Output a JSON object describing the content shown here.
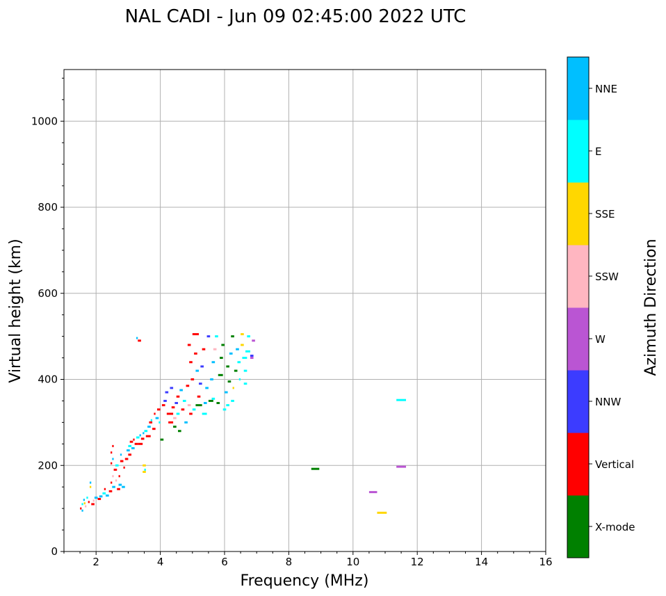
{
  "chart_data": {
    "type": "scatter",
    "title": "NAL CADI - Jun 09 02:45:00 2022 UTC",
    "xlabel": "Frequency (MHz)",
    "ylabel": "Virtual height (km)",
    "xlim": [
      1,
      16
    ],
    "ylim": [
      0,
      1120
    ],
    "xticks": [
      2,
      4,
      6,
      8,
      10,
      12,
      14,
      16
    ],
    "yticks": [
      0,
      200,
      400,
      600,
      800,
      1000
    ],
    "grid": true,
    "colorbar": {
      "label": "Azimuth Direction",
      "categories": [
        "X-mode",
        "Vertical",
        "NNW",
        "W",
        "SSW",
        "SSE",
        "E",
        "NNE"
      ],
      "colors": [
        "#008000",
        "#ff0000",
        "#3c3cff",
        "#ba55d3",
        "#ffb6c1",
        "#ffd700",
        "#00ffff",
        "#00bfff"
      ]
    },
    "points_format": [
      "frequency_MHz",
      "virtual_height_km",
      "direction_index",
      "width_MHz"
    ],
    "points": [
      [
        1.5,
        100,
        1,
        0.05
      ],
      [
        1.55,
        110,
        6,
        0.05
      ],
      [
        1.6,
        120,
        7,
        0.05
      ],
      [
        1.65,
        105,
        4,
        0.05
      ],
      [
        1.7,
        125,
        6,
        0.05
      ],
      [
        1.75,
        115,
        1,
        0.05
      ],
      [
        1.55,
        95,
        7,
        0.05
      ],
      [
        1.62,
        112,
        5,
        0.05
      ],
      [
        1.85,
        110,
        1,
        0.1
      ],
      [
        1.9,
        118,
        4,
        0.05
      ],
      [
        1.95,
        125,
        7,
        0.1
      ],
      [
        1.8,
        160,
        7,
        0.05
      ],
      [
        1.8,
        150,
        5,
        0.05
      ],
      [
        2.05,
        122,
        1,
        0.1
      ],
      [
        2.1,
        128,
        7,
        0.1
      ],
      [
        2.2,
        135,
        6,
        0.1
      ],
      [
        2.25,
        145,
        1,
        0.05
      ],
      [
        2.3,
        130,
        7,
        0.1
      ],
      [
        2.4,
        140,
        1,
        0.1
      ],
      [
        2.45,
        160,
        1,
        0.05
      ],
      [
        2.5,
        150,
        7,
        0.1
      ],
      [
        2.5,
        175,
        4,
        0.05
      ],
      [
        2.45,
        205,
        1,
        0.05
      ],
      [
        2.5,
        215,
        7,
        0.05
      ],
      [
        2.45,
        230,
        1,
        0.05
      ],
      [
        2.5,
        245,
        1,
        0.05
      ],
      [
        2.55,
        190,
        1,
        0.1
      ],
      [
        2.6,
        200,
        6,
        0.1
      ],
      [
        2.6,
        165,
        4,
        0.05
      ],
      [
        2.65,
        145,
        1,
        0.1
      ],
      [
        2.7,
        155,
        7,
        0.1
      ],
      [
        2.7,
        175,
        1,
        0.05
      ],
      [
        2.75,
        210,
        1,
        0.1
      ],
      [
        2.75,
        225,
        7,
        0.05
      ],
      [
        2.8,
        150,
        7,
        0.1
      ],
      [
        2.85,
        195,
        1,
        0.05
      ],
      [
        2.9,
        215,
        1,
        0.1
      ],
      [
        2.95,
        235,
        7,
        0.1
      ],
      [
        3.0,
        225,
        1,
        0.1
      ],
      [
        3.0,
        245,
        6,
        0.1
      ],
      [
        3.05,
        255,
        1,
        0.1
      ],
      [
        3.1,
        240,
        7,
        0.1
      ],
      [
        3.15,
        260,
        1,
        0.05
      ],
      [
        3.2,
        250,
        1,
        0.1
      ],
      [
        3.25,
        265,
        6,
        0.1
      ],
      [
        3.3,
        250,
        1,
        0.15
      ],
      [
        3.35,
        270,
        7,
        0.05
      ],
      [
        3.4,
        262,
        1,
        0.1
      ],
      [
        3.45,
        275,
        7,
        0.05
      ],
      [
        3.5,
        280,
        6,
        0.1
      ],
      [
        3.55,
        268,
        1,
        0.15
      ],
      [
        3.6,
        290,
        7,
        0.1
      ],
      [
        3.65,
        300,
        1,
        0.1
      ],
      [
        3.7,
        305,
        6,
        0.05
      ],
      [
        3.75,
        285,
        1,
        0.1
      ],
      [
        3.8,
        320,
        1,
        0.05
      ],
      [
        3.85,
        310,
        7,
        0.1
      ],
      [
        3.9,
        330,
        1,
        0.1
      ],
      [
        3.95,
        300,
        6,
        0.05
      ],
      [
        3.3,
        490,
        1,
        0.1
      ],
      [
        3.25,
        496,
        7,
        0.05
      ],
      [
        3.45,
        200,
        5,
        0.1
      ],
      [
        3.5,
        190,
        6,
        0.05
      ],
      [
        3.45,
        185,
        5,
        0.1
      ],
      [
        4.0,
        260,
        0,
        0.1
      ],
      [
        4.05,
        340,
        1,
        0.1
      ],
      [
        4.1,
        350,
        2,
        0.1
      ],
      [
        4.15,
        370,
        2,
        0.1
      ],
      [
        4.2,
        320,
        1,
        0.2
      ],
      [
        4.25,
        300,
        1,
        0.15
      ],
      [
        4.3,
        380,
        2,
        0.1
      ],
      [
        4.35,
        335,
        1,
        0.1
      ],
      [
        4.4,
        290,
        0,
        0.1
      ],
      [
        4.4,
        310,
        4,
        0.1
      ],
      [
        4.45,
        345,
        2,
        0.1
      ],
      [
        4.5,
        360,
        1,
        0.1
      ],
      [
        4.5,
        320,
        6,
        0.1
      ],
      [
        4.55,
        280,
        0,
        0.1
      ],
      [
        4.6,
        375,
        7,
        0.1
      ],
      [
        4.65,
        330,
        1,
        0.1
      ],
      [
        4.7,
        350,
        6,
        0.1
      ],
      [
        4.75,
        300,
        7,
        0.1
      ],
      [
        4.8,
        385,
        1,
        0.1
      ],
      [
        4.85,
        340,
        4,
        0.1
      ],
      [
        4.9,
        320,
        1,
        0.1
      ],
      [
        4.95,
        400,
        1,
        0.1
      ],
      [
        4.9,
        440,
        1,
        0.1
      ],
      [
        4.85,
        480,
        1,
        0.1
      ],
      [
        5.0,
        505,
        1,
        0.2
      ],
      [
        5.05,
        460,
        1,
        0.1
      ],
      [
        5.1,
        420,
        7,
        0.1
      ],
      [
        5.1,
        340,
        0,
        0.2
      ],
      [
        5.15,
        360,
        1,
        0.1
      ],
      [
        5.2,
        390,
        2,
        0.1
      ],
      [
        5.25,
        430,
        2,
        0.1
      ],
      [
        5.3,
        470,
        1,
        0.1
      ],
      [
        5.3,
        320,
        6,
        0.15
      ],
      [
        5.35,
        345,
        7,
        0.1
      ],
      [
        5.4,
        380,
        7,
        0.1
      ],
      [
        5.45,
        500,
        2,
        0.1
      ],
      [
        5.5,
        350,
        0,
        0.15
      ],
      [
        5.55,
        400,
        7,
        0.1
      ],
      [
        5.6,
        440,
        7,
        0.1
      ],
      [
        5.65,
        470,
        4,
        0.1
      ],
      [
        5.7,
        500,
        6,
        0.1
      ],
      [
        5.75,
        345,
        0,
        0.1
      ],
      [
        5.8,
        410,
        0,
        0.15
      ],
      [
        5.85,
        450,
        0,
        0.1
      ],
      [
        5.9,
        480,
        0,
        0.1
      ],
      [
        5.95,
        330,
        6,
        0.1
      ],
      [
        6.0,
        370,
        7,
        0.1
      ],
      [
        6.05,
        430,
        0,
        0.1
      ],
      [
        6.1,
        395,
        0,
        0.1
      ],
      [
        6.15,
        460,
        7,
        0.1
      ],
      [
        6.2,
        500,
        0,
        0.1
      ],
      [
        6.25,
        380,
        5,
        0.05
      ],
      [
        6.3,
        420,
        0,
        0.1
      ],
      [
        6.35,
        470,
        7,
        0.1
      ],
      [
        6.4,
        440,
        6,
        0.1
      ],
      [
        6.45,
        400,
        6,
        0.05
      ],
      [
        6.5,
        505,
        5,
        0.1
      ],
      [
        6.5,
        480,
        5,
        0.1
      ],
      [
        6.55,
        450,
        6,
        0.15
      ],
      [
        6.6,
        420,
        6,
        0.1
      ],
      [
        6.6,
        390,
        6,
        0.1
      ],
      [
        6.65,
        465,
        6,
        0.15
      ],
      [
        6.7,
        500,
        6,
        0.1
      ],
      [
        6.8,
        450,
        3,
        0.1
      ],
      [
        6.85,
        490,
        3,
        0.1
      ],
      [
        6.8,
        455,
        2,
        0.1
      ],
      [
        6.2,
        350,
        6,
        0.1
      ],
      [
        6.05,
        340,
        6,
        0.1
      ],
      [
        5.0,
        330,
        6,
        0.1
      ],
      [
        5.6,
        355,
        6,
        0.1
      ],
      [
        8.7,
        192,
        0,
        0.25
      ],
      [
        10.5,
        138,
        3,
        0.25
      ],
      [
        10.75,
        90,
        5,
        0.3
      ],
      [
        11.35,
        352,
        6,
        0.3
      ],
      [
        11.35,
        197,
        3,
        0.3
      ]
    ]
  }
}
